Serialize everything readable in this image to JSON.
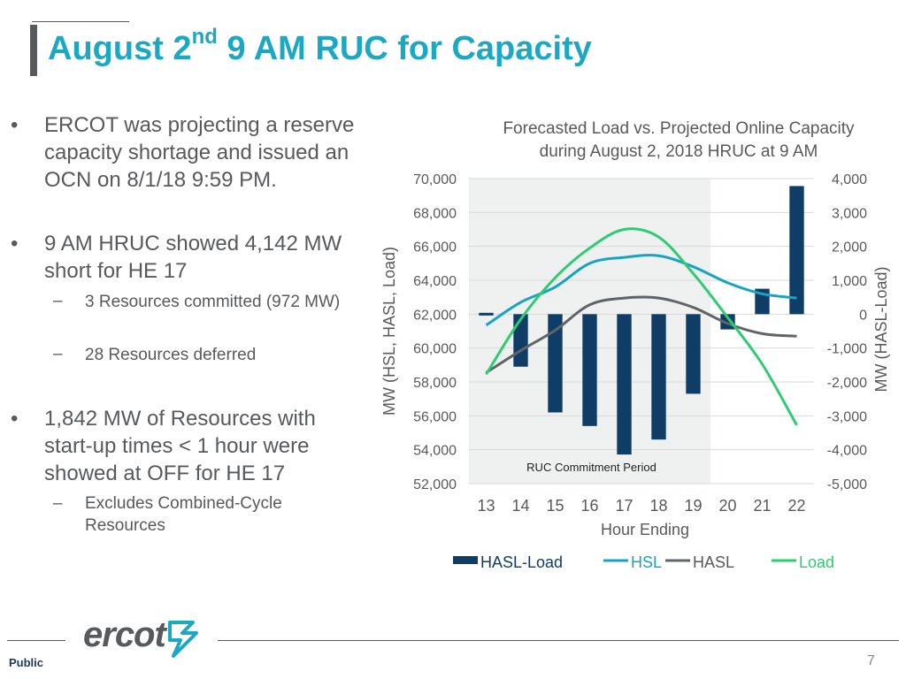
{
  "slide": {
    "title_main": "August 2",
    "title_sup": "nd",
    "title_rest": " 9 AM RUC for Capacity",
    "bullets": [
      {
        "text": "ERCOT was projecting a reserve capacity shortage and issued an OCN on 8/1/18 9:59 PM."
      },
      {
        "text": "9 AM HRUC showed 4,142 MW short for HE 17"
      },
      {
        "text": "3 Resources committed (972 MW)"
      },
      {
        "text": "28 Resources deferred"
      },
      {
        "text": "1,842 MW of Resources with start-up times < 1 hour were showed at OFF for HE 17"
      },
      {
        "text": "Excludes Combined-Cycle Resources"
      }
    ],
    "bullet_symbol": "•",
    "sub_symbol": "–",
    "footer_label": "Public",
    "page_number": "7",
    "logo_text": "ercot"
  },
  "chart_data": {
    "type": "bar+line",
    "title_line1": "Forecasted Load vs. Projected Online Capacity",
    "title_line2": "during August 2, 2018 HRUC at 9 AM",
    "xlabel": "Hour Ending",
    "ylabel_left": "MW (HSL, HASL, Load)",
    "ylabel_right": "MW (HASL-Load)",
    "categories": [
      "13",
      "14",
      "15",
      "16",
      "17",
      "18",
      "19",
      "20",
      "21",
      "22"
    ],
    "ylim_left": [
      52000,
      70000
    ],
    "ylim_right": [
      -5000,
      4000
    ],
    "ticks_left": [
      "70,000",
      "68,000",
      "66,000",
      "64,000",
      "62,000",
      "60,000",
      "58,000",
      "56,000",
      "54,000",
      "52,000"
    ],
    "ticks_right": [
      "4,000",
      "3,000",
      "2,000",
      "1,000",
      "0",
      "-1,000",
      "-2,000",
      "-3,000",
      "-4,000",
      "-5,000"
    ],
    "annotation": "RUC Commitment Period",
    "shaded_hours": [
      "13",
      "19"
    ],
    "grid": true,
    "legend_position": "bottom",
    "series": [
      {
        "name": "HASL-Load",
        "kind": "bar",
        "axis": "right",
        "color": "#0f3d66",
        "values": [
          0,
          -1550,
          -2900,
          -3300,
          -4142,
          -3700,
          -2350,
          -450,
          750,
          3780
        ]
      },
      {
        "name": "HSL",
        "kind": "line",
        "axis": "left",
        "color": "#17a3c4",
        "values": [
          61350,
          62700,
          63600,
          65000,
          65350,
          65450,
          64800,
          63850,
          63200,
          62950
        ]
      },
      {
        "name": "HASL",
        "kind": "line",
        "axis": "left",
        "color": "#5e6468",
        "values": [
          58550,
          59850,
          61050,
          62550,
          62950,
          62950,
          62400,
          61450,
          60850,
          60700
        ]
      },
      {
        "name": "Load",
        "kind": "line",
        "axis": "left",
        "color": "#2ecc71",
        "values": [
          58450,
          61700,
          64150,
          65900,
          67000,
          66550,
          64400,
          61800,
          59050,
          55450
        ]
      }
    ]
  }
}
